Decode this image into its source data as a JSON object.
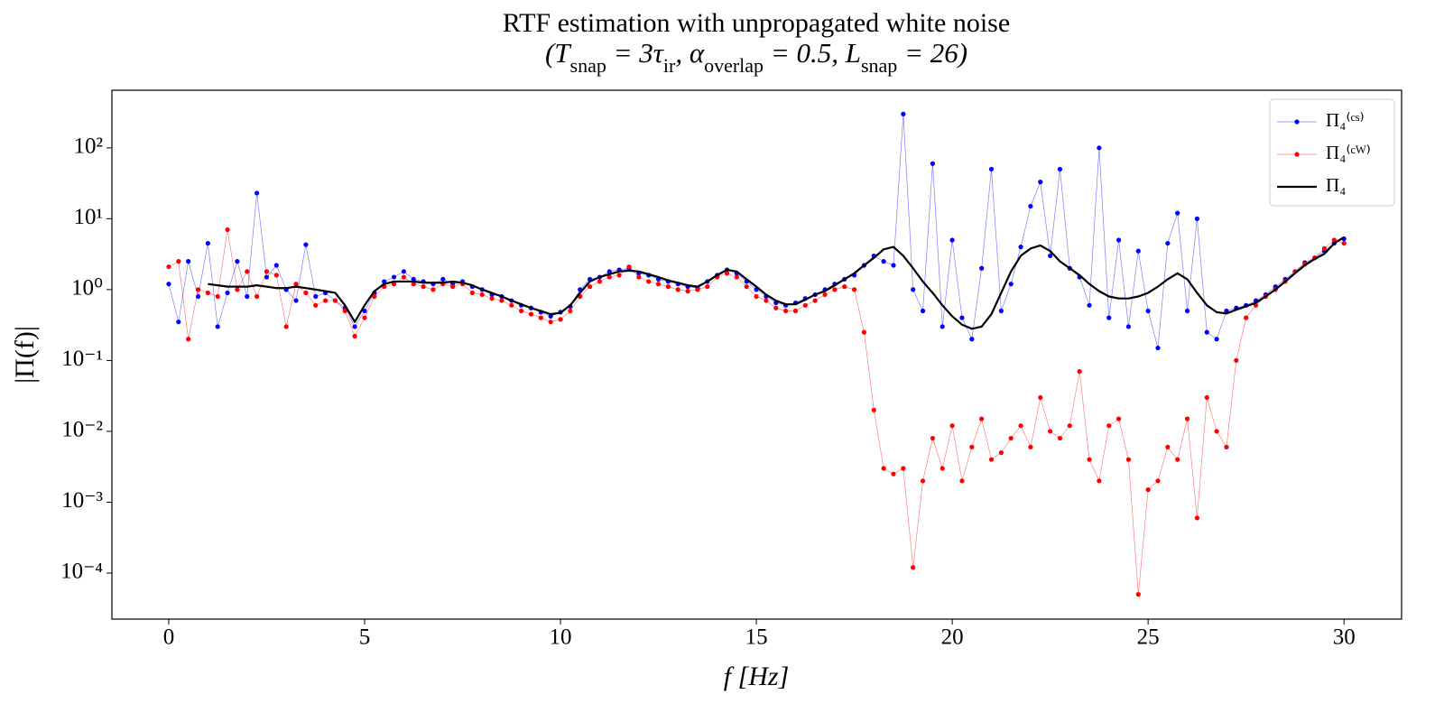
{
  "chart_data": {
    "type": "line",
    "title": "RTF estimation with unpropagated white noise",
    "subtitle": [
      "(T",
      "snap",
      " = 3τ",
      "ir",
      ",   α",
      "overlap",
      " = 0.5,   L",
      "snap",
      " = 26)"
    ],
    "x_label": "f [Hz]",
    "y_label": "|Π(f)|",
    "yscale": "log",
    "grid": false,
    "legend": "upper right",
    "xlim": [
      -1.45,
      31.47
    ],
    "ylim": [
      2.24e-05,
      650
    ],
    "xticks": [
      0,
      5,
      10,
      15,
      20,
      25,
      30
    ],
    "yticks": [
      {
        "value": 0.0001,
        "label": "10⁻⁴"
      },
      {
        "value": 0.001,
        "label": "10⁻³"
      },
      {
        "value": 0.01,
        "label": "10⁻²"
      },
      {
        "value": 0.1,
        "label": "10⁻¹"
      },
      {
        "value": 1,
        "label": "10⁰"
      },
      {
        "value": 10,
        "label": "10¹"
      },
      {
        "value": 100,
        "label": "10²"
      }
    ],
    "x": [
      0,
      0.25,
      0.5,
      0.75,
      1,
      1.25,
      1.5,
      1.75,
      2,
      2.25,
      2.5,
      2.75,
      3,
      3.25,
      3.5,
      3.75,
      4,
      4.25,
      4.5,
      4.75,
      5,
      5.25,
      5.5,
      5.75,
      6,
      6.25,
      6.5,
      6.75,
      7,
      7.25,
      7.5,
      7.75,
      8,
      8.25,
      8.5,
      8.75,
      9,
      9.25,
      9.5,
      9.75,
      10,
      10.25,
      10.5,
      10.75,
      11,
      11.25,
      11.5,
      11.75,
      12,
      12.25,
      12.5,
      12.75,
      13,
      13.25,
      13.5,
      13.75,
      14,
      14.25,
      14.5,
      14.75,
      15,
      15.25,
      15.5,
      15.75,
      16,
      16.25,
      16.5,
      16.75,
      17,
      17.25,
      17.5,
      17.75,
      18,
      18.25,
      18.5,
      18.75,
      19,
      19.25,
      19.5,
      19.75,
      20,
      20.25,
      20.5,
      20.75,
      21,
      21.25,
      21.5,
      21.75,
      22,
      22.25,
      22.5,
      22.75,
      23,
      23.25,
      23.5,
      23.75,
      24,
      24.25,
      24.5,
      24.75,
      25,
      25.25,
      25.5,
      25.75,
      26,
      26.25,
      26.5,
      26.75,
      27,
      27.25,
      27.5,
      27.75,
      28,
      28.25,
      28.5,
      28.75,
      29,
      29.25,
      29.5,
      29.75,
      30
    ],
    "series": [
      {
        "name": "Π₄⁽ᶜˢ⁾",
        "color": "#0000ff",
        "markers": true,
        "values": [
          1.2,
          0.35,
          2.5,
          0.8,
          4.5,
          0.3,
          0.9,
          2.5,
          0.8,
          23,
          1.5,
          2.2,
          1.0,
          0.7,
          4.3,
          0.8,
          0.9,
          0.7,
          0.55,
          0.3,
          0.5,
          0.9,
          1.3,
          1.5,
          1.8,
          1.4,
          1.3,
          1.2,
          1.4,
          1.2,
          1.3,
          1.1,
          1.0,
          0.85,
          0.8,
          0.7,
          0.6,
          0.55,
          0.48,
          0.42,
          0.48,
          0.58,
          1.0,
          1.4,
          1.5,
          1.8,
          1.9,
          2.0,
          1.7,
          1.6,
          1.4,
          1.3,
          1.2,
          1.1,
          1.05,
          1.3,
          1.6,
          1.9,
          1.7,
          1.3,
          1.0,
          0.8,
          0.65,
          0.6,
          0.65,
          0.75,
          0.85,
          1.0,
          1.2,
          1.4,
          1.6,
          2.2,
          3.0,
          2.5,
          2.2,
          300,
          1.0,
          0.5,
          60,
          0.3,
          5.0,
          0.4,
          0.2,
          2.0,
          50,
          0.5,
          1.2,
          4.0,
          15,
          33,
          3.0,
          50,
          2.0,
          1.5,
          0.6,
          100,
          0.4,
          5.0,
          0.3,
          3.5,
          0.5,
          0.15,
          4.5,
          12,
          0.5,
          10,
          0.25,
          0.2,
          0.5,
          0.55,
          0.6,
          0.7,
          0.85,
          1.1,
          1.4,
          1.8,
          2.4,
          2.8,
          3.5,
          4.5,
          5.2
        ]
      },
      {
        "name": "Π₄⁽ᶜᵂ⁾",
        "color": "#ff0000",
        "markers": true,
        "values": [
          2.1,
          2.5,
          0.2,
          1.0,
          0.9,
          0.8,
          7.0,
          1.0,
          1.8,
          0.8,
          1.8,
          1.6,
          0.3,
          1.2,
          0.9,
          0.6,
          0.7,
          0.7,
          0.5,
          0.22,
          0.4,
          0.8,
          1.1,
          1.2,
          1.5,
          1.2,
          1.1,
          1.0,
          1.2,
          1.1,
          1.2,
          0.9,
          0.85,
          0.75,
          0.7,
          0.6,
          0.5,
          0.45,
          0.4,
          0.35,
          0.38,
          0.5,
          0.8,
          1.1,
          1.3,
          1.5,
          1.6,
          2.1,
          1.5,
          1.3,
          1.2,
          1.1,
          1.0,
          0.95,
          1.0,
          1.1,
          1.5,
          1.7,
          1.5,
          1.1,
          0.8,
          0.7,
          0.55,
          0.5,
          0.5,
          0.6,
          0.7,
          0.85,
          1.0,
          1.1,
          1.0,
          0.25,
          0.02,
          0.003,
          0.0025,
          0.003,
          0.00012,
          0.002,
          0.008,
          0.003,
          0.012,
          0.002,
          0.006,
          0.015,
          0.004,
          0.005,
          0.008,
          0.012,
          0.006,
          0.03,
          0.01,
          0.008,
          0.012,
          0.07,
          0.004,
          0.002,
          0.012,
          0.015,
          0.004,
          5e-05,
          0.0015,
          0.002,
          0.006,
          0.004,
          0.015,
          0.0006,
          0.03,
          0.01,
          0.006,
          0.1,
          0.4,
          0.6,
          0.8,
          1.0,
          1.3,
          1.8,
          2.3,
          2.8,
          3.8,
          5.0,
          4.5
        ]
      },
      {
        "name": "Π₄",
        "color": "#000000",
        "markers": false,
        "values": [
          null,
          null,
          null,
          null,
          1.2,
          1.15,
          1.1,
          1.1,
          1.1,
          1.15,
          1.1,
          1.05,
          1.05,
          1.1,
          1.05,
          1.0,
          0.95,
          0.9,
          0.6,
          0.35,
          0.6,
          0.95,
          1.2,
          1.3,
          1.3,
          1.3,
          1.25,
          1.25,
          1.25,
          1.3,
          1.25,
          1.15,
          1.0,
          0.9,
          0.8,
          0.7,
          0.62,
          0.55,
          0.5,
          0.45,
          0.47,
          0.6,
          0.9,
          1.3,
          1.5,
          1.65,
          1.8,
          1.85,
          1.8,
          1.65,
          1.5,
          1.35,
          1.25,
          1.15,
          1.1,
          1.3,
          1.6,
          1.9,
          1.8,
          1.4,
          1.1,
          0.85,
          0.7,
          0.62,
          0.62,
          0.72,
          0.85,
          0.95,
          1.15,
          1.4,
          1.7,
          2.2,
          2.8,
          3.7,
          4.0,
          3.0,
          2.0,
          1.3,
          0.9,
          0.6,
          0.42,
          0.32,
          0.28,
          0.3,
          0.45,
          0.9,
          1.8,
          3.0,
          3.8,
          4.2,
          3.5,
          2.5,
          2.0,
          1.6,
          1.2,
          0.95,
          0.8,
          0.75,
          0.75,
          0.8,
          0.9,
          1.1,
          1.4,
          1.7,
          1.4,
          0.9,
          0.6,
          0.48,
          0.46,
          0.52,
          0.58,
          0.65,
          0.8,
          1.0,
          1.3,
          1.7,
          2.2,
          2.7,
          3.2,
          4.5,
          5.5
        ]
      }
    ]
  }
}
